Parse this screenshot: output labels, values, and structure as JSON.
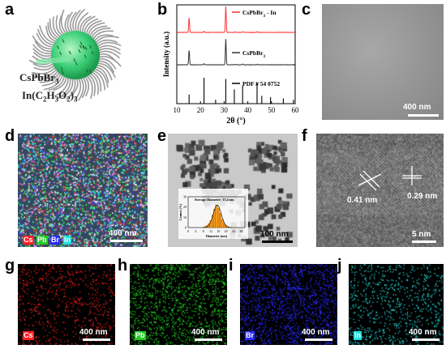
{
  "panels": {
    "a": {
      "letter": "a",
      "label_main": "CsPbBr",
      "label_main_sub": "3",
      "label_ligand": "In(C",
      "ligand_sub1": "2",
      "ligand_mid1": "H",
      "ligand_sub2": "3",
      "ligand_mid2": "O",
      "ligand_sub3": "2",
      "ligand_end": ")",
      "ligand_sub4": "3"
    },
    "b": {
      "letter": "b"
    },
    "c": {
      "letter": "c",
      "scale": "400 nm"
    },
    "d": {
      "letter": "d",
      "scale": "400 nm",
      "tags": [
        "Cs",
        "Pb",
        "Br",
        "In"
      ]
    },
    "e": {
      "letter": "e",
      "scale": "100 nm",
      "inset_title": "Average Diameter: 15.4 nm",
      "inset_xlabel": "Diameter (nm)",
      "inset_ylabel": "Counts (%)"
    },
    "f": {
      "letter": "f",
      "scale": "5 nm",
      "d1": "0.41 nm",
      "d2": "0.29 nm"
    },
    "g": {
      "letter": "g",
      "scale": "400 nm",
      "tag": "Cs"
    },
    "h": {
      "letter": "h",
      "scale": "400 nm",
      "tag": "Pb"
    },
    "i": {
      "letter": "i",
      "scale": "400 nm",
      "tag": "Br"
    },
    "j": {
      "letter": "j",
      "scale": "400 nm",
      "tag": "In"
    }
  },
  "colors": {
    "cs": "#ff2020",
    "pb": "#22dd22",
    "br": "#2a2aff",
    "in": "#22dddd",
    "xrd_doped": "#ff3030",
    "xrd_pure": "#333333"
  },
  "chart_data": [
    {
      "type": "line",
      "xlabel": "2θ (°)",
      "ylabel": "Intensity (a.u.)",
      "xlim": [
        10,
        60
      ],
      "xticks": [
        10,
        20,
        30,
        40,
        50,
        60
      ],
      "grid": false,
      "legend_placement": "inline-right",
      "series": [
        {
          "name": "CsPbBr3 - In",
          "peaks": [
            [
              15.2,
              0.55
            ],
            [
              21.5,
              0.04
            ],
            [
              30.7,
              1.0
            ],
            [
              34.5,
              0.02
            ],
            [
              37.8,
              0.03
            ],
            [
              43.9,
              0.02
            ]
          ]
        },
        {
          "name": "CsPbBr3",
          "peaks": [
            [
              15.2,
              0.55
            ],
            [
              21.5,
              0.04
            ],
            [
              30.7,
              1.0
            ],
            [
              34.5,
              0.02
            ],
            [
              37.8,
              0.03
            ],
            [
              43.9,
              0.02
            ]
          ]
        },
        {
          "name": "PDF # 54 0752",
          "sticks": [
            [
              15.2,
              0.35
            ],
            [
              21.5,
              1.0
            ],
            [
              26.4,
              0.15
            ],
            [
              30.7,
              0.95
            ],
            [
              34.3,
              0.55
            ],
            [
              37.8,
              0.7
            ],
            [
              43.9,
              0.8
            ],
            [
              45.9,
              0.3
            ],
            [
              49.6,
              0.25
            ],
            [
              55.0,
              0.2
            ],
            [
              59.3,
              0.15
            ]
          ]
        }
      ],
      "legend": [
        "CsPbBr3 - In",
        "CsPbBr3",
        "PDF # 54 0752"
      ]
    },
    {
      "type": "bar",
      "title": "Average Diameter: 15.4 nm",
      "xlabel": "Diameter (nm)",
      "ylabel": "Counts (%)",
      "xticks": [
        0,
        4,
        8,
        12,
        16,
        20,
        24,
        28
      ],
      "yticks": [
        0,
        10,
        20,
        30
      ],
      "xlim": [
        0,
        30
      ],
      "ylim": [
        0,
        30
      ],
      "categories": [
        9,
        10,
        11,
        12,
        13,
        14,
        15,
        16,
        17,
        18,
        19,
        20,
        21
      ],
      "values": [
        1,
        2,
        4,
        7,
        12,
        18,
        22,
        19,
        14,
        8,
        4,
        2,
        1
      ]
    }
  ]
}
